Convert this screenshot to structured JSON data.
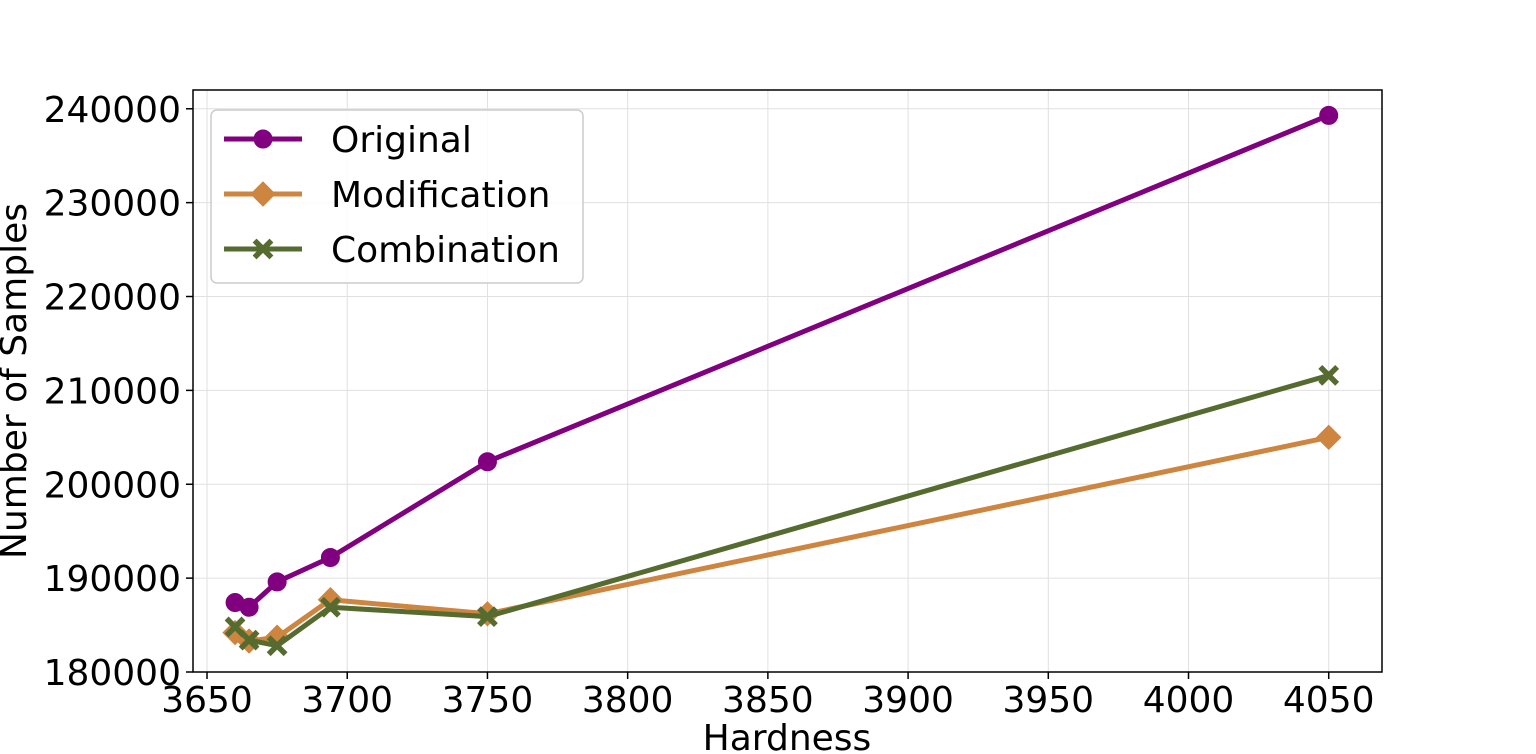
{
  "chart_data": {
    "type": "line",
    "title": "",
    "xlabel": "Hardness",
    "ylabel": "Number of Samples",
    "xlim": [
      3645,
      4069
    ],
    "ylim": [
      180000,
      242000
    ],
    "xticks": [
      3650,
      3700,
      3750,
      3800,
      3850,
      3900,
      3950,
      4000,
      4050
    ],
    "yticks": [
      180000,
      190000,
      200000,
      210000,
      220000,
      230000,
      240000
    ],
    "grid": true,
    "legend_position": "top-left",
    "series": [
      {
        "name": "Original",
        "color": "#800080",
        "marker": "circle",
        "x": [
          3660,
          3665,
          3675,
          3694,
          3750,
          4050
        ],
        "y": [
          187400,
          186900,
          189600,
          192200,
          202400,
          239300
        ]
      },
      {
        "name": "Modification",
        "color": "#CD853F",
        "marker": "diamond",
        "x": [
          3660,
          3665,
          3675,
          3694,
          3750,
          4050
        ],
        "y": [
          184200,
          183300,
          183700,
          187700,
          186200,
          205000
        ]
      },
      {
        "name": "Combination",
        "color": "#556B2F",
        "marker": "x",
        "x": [
          3660,
          3665,
          3675,
          3694,
          3750,
          4050
        ],
        "y": [
          184800,
          183400,
          182800,
          186900,
          185900,
          211600
        ]
      }
    ]
  }
}
